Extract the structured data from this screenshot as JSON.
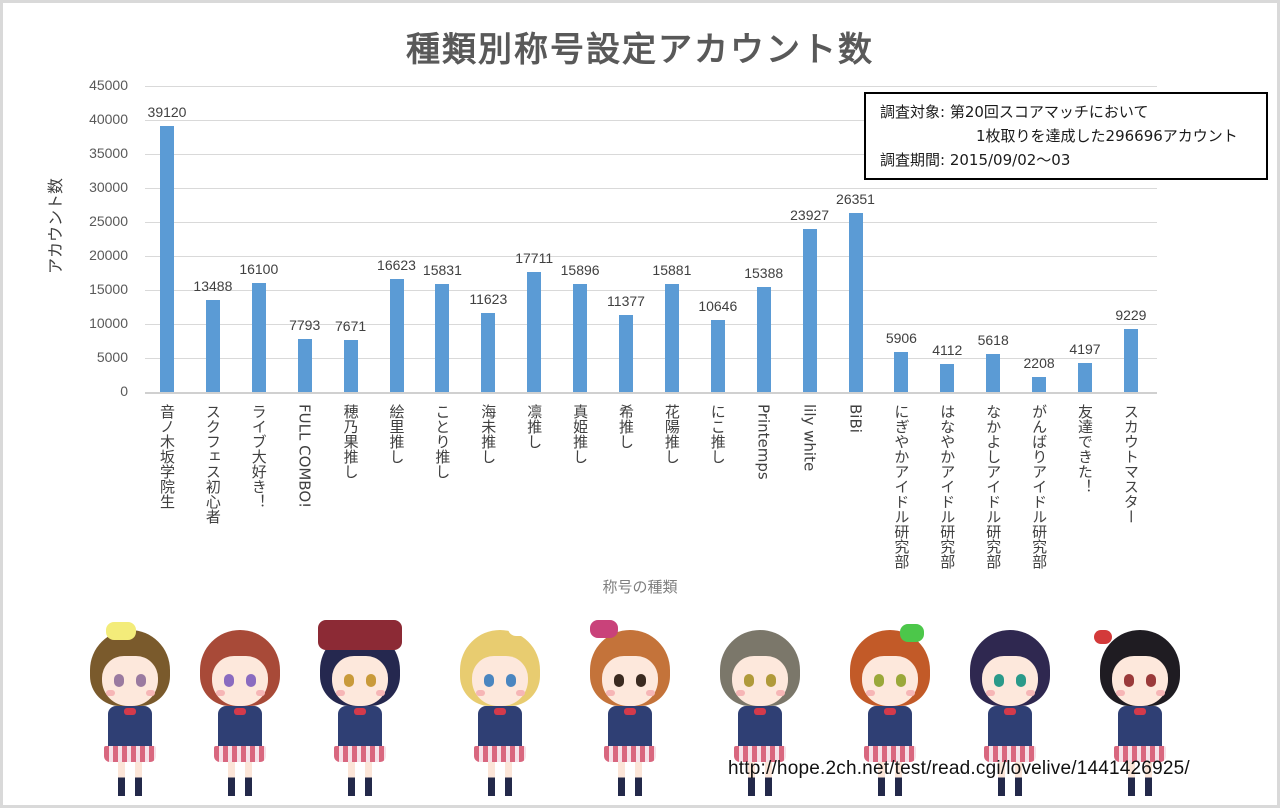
{
  "title": "種類別称号設定アカウント数",
  "y_axis": {
    "label": "アカウント数",
    "ticks": [
      "45000",
      "40000",
      "35000",
      "30000",
      "25000",
      "20000",
      "15000",
      "10000",
      "5000",
      "0"
    ]
  },
  "x_axis": {
    "label": "称号の種類",
    "categories": [
      "音ノ木坂学院生",
      "スクフェス初心者",
      "ライブ大好き！",
      "FULL COMBO!",
      "穂乃果推し",
      "絵里推し",
      "ことり推し",
      "海未推し",
      "凛推し",
      "真姫推し",
      "希推し",
      "花陽推し",
      "にこ推し",
      "Printemps",
      "lily white",
      "BiBi",
      "にぎやかアイドル研究部",
      "はなやかアイドル研究部",
      "なかよしアイドル研究部",
      "がんばりアイドル研究部",
      "友達できた！",
      "スカウトマスター"
    ]
  },
  "value_labels": [
    "39120",
    "13488",
    "16100",
    "7793",
    "7671",
    "16623",
    "15831",
    "11623",
    "17711",
    "15896",
    "11377",
    "15881",
    "10646",
    "15388",
    "23927",
    "26351",
    "5906",
    "4112",
    "5618",
    "2208",
    "4197",
    "9229"
  ],
  "note": {
    "line1": "調査対象: 第20回スコアマッチにおいて",
    "line2": "1枚取りを達成した296696アカウント",
    "line3": "調査期間: 2015/09/02～03"
  },
  "source_url": "http://hope.2ch.net/test/read.cgi/lovelive/1441426925/",
  "colors": {
    "bar": "#5b9bd5",
    "grid": "#d9d9d9",
    "title": "#595959"
  },
  "illustration": {
    "characters": [
      "character-yellow-bow-brown-hair",
      "character-red-hair",
      "character-navy-hair-beret",
      "character-blonde-ponytail",
      "character-orange-side-tail-pink-bow",
      "character-gray-hair",
      "character-orange-hair-green-bow",
      "character-purple-twin-tails",
      "character-black-twin-tails-red-bows"
    ]
  },
  "chart_data": {
    "type": "bar",
    "title": "種類別称号設定アカウント数",
    "xlabel": "称号の種類",
    "ylabel": "アカウント数",
    "ylim": [
      0,
      45000
    ],
    "yticks": [
      0,
      5000,
      10000,
      15000,
      20000,
      25000,
      30000,
      35000,
      40000,
      45000
    ],
    "grid": true,
    "legend": null,
    "categories": [
      "音ノ木坂学院生",
      "スクフェス初心者",
      "ライブ大好き！",
      "FULL COMBO!",
      "穂乃果推し",
      "絵里推し",
      "ことり推し",
      "海未推し",
      "凛推し",
      "真姫推し",
      "希推し",
      "花陽推し",
      "にこ推し",
      "Printemps",
      "lily white",
      "BiBi",
      "にぎやかアイドル研究部",
      "はなやかアイドル研究部",
      "なかよしアイドル研究部",
      "がんばりアイドル研究部",
      "友達できた！",
      "スカウトマスター"
    ],
    "values": [
      39120,
      13488,
      16100,
      7793,
      7671,
      16623,
      15831,
      11623,
      17711,
      15896,
      11377,
      15881,
      10646,
      15388,
      23927,
      26351,
      5906,
      4112,
      5618,
      2208,
      4197,
      9229
    ],
    "annotations": [
      "調査対象: 第20回スコアマッチにおいて 1枚取りを達成した296696アカウント",
      "調査期間: 2015/09/02～03"
    ]
  }
}
